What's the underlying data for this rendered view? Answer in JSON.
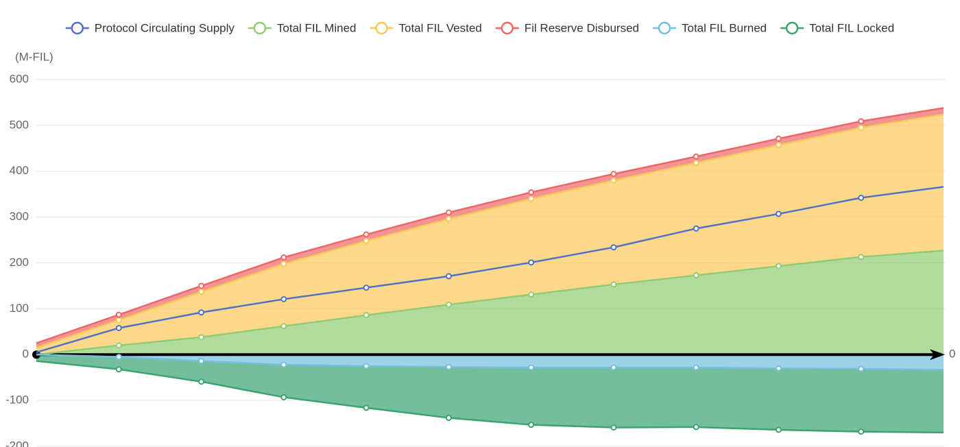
{
  "chart_data": {
    "type": "stacked-area",
    "y_axis_label": "(M-FIL)",
    "categories": [
      null,
      null,
      null,
      null,
      null,
      null,
      null,
      null,
      null,
      null,
      null,
      null
    ],
    "ylim": [
      -200,
      600
    ],
    "yticks": [
      -200,
      -100,
      0,
      100,
      200,
      300,
      400,
      500,
      600
    ],
    "grid": true,
    "legend": "top",
    "zero_line_label": "0",
    "series": [
      {
        "name": "Protocol Circulating Supply",
        "color": "#5470c6",
        "stack": false,
        "values": [
          5,
          58,
          92,
          121,
          146,
          171,
          201,
          234,
          275,
          307,
          342,
          366
        ]
      },
      {
        "name": "Total FIL Mined",
        "color": "#91cc75",
        "stack": true,
        "values": [
          0,
          20,
          38,
          62,
          86,
          109,
          131,
          153,
          173,
          193,
          213,
          227
        ]
      },
      {
        "name": "Total FIL Vested",
        "color": "#fac858",
        "stack": true,
        "values": [
          15,
          55,
          99,
          136,
          162,
          187,
          209,
          227,
          245,
          264,
          282,
          297
        ]
      },
      {
        "name": "Fil Reserve Disbursed",
        "color": "#ee6666",
        "stack": true,
        "values": [
          10,
          12,
          13,
          14,
          14,
          14,
          14,
          14,
          14,
          14,
          14,
          14
        ]
      },
      {
        "name": "Total FIL Burned",
        "color": "#73c0de",
        "stack": true,
        "values": [
          0,
          -5,
          -14,
          -22,
          -25,
          -27,
          -28,
          -28,
          -28,
          -30,
          -31,
          -33
        ]
      },
      {
        "name": "Total FIL Locked",
        "color": "#3ba272",
        "stack": true,
        "values": [
          -14,
          -27,
          -45,
          -71,
          -91,
          -111,
          -125,
          -131,
          -130,
          -134,
          -137,
          -137
        ]
      }
    ]
  }
}
